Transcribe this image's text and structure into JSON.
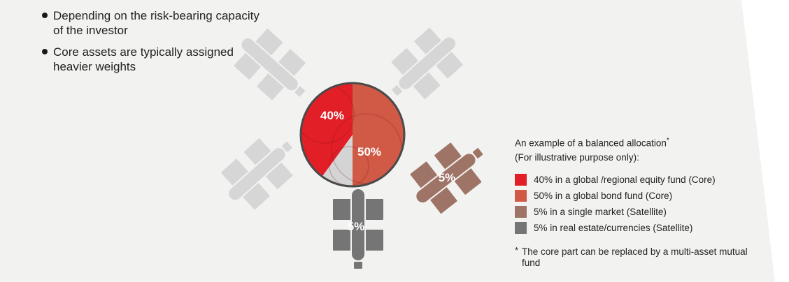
{
  "bullets": [
    {
      "text": "Depending on the risk-bearing capacity of the investor"
    },
    {
      "text": "Core assets are typically assigned heavier weights"
    }
  ],
  "legend": {
    "title_line1": "An example of a balanced allocation",
    "title_mark": "*",
    "title_line2": "(For illustrative purpose only):",
    "items": [
      {
        "label": "40% in a global /regional equity fund (Core)",
        "color": "#e21f26"
      },
      {
        "label": "50% in a global bond fund (Core)",
        "color": "#d05a45"
      },
      {
        "label": "5% in a single market (Satellite)",
        "color": "#9e7466"
      },
      {
        "label": "5% in real estate/currencies (Satellite)",
        "color": "#757575"
      }
    ],
    "footnote_mark": "*",
    "footnote": "The core part can be replaced by a multi-asset mutual fund"
  },
  "chart_data": {
    "type": "pie",
    "categories": [
      "40% in a global /regional equity fund (Core)",
      "50% in a global bond fund (Core)",
      "5% in a single market (Satellite)",
      "5% in real estate/currencies (Satellite)"
    ],
    "values": [
      40,
      50,
      5,
      5
    ],
    "labels": [
      "40%",
      "50%",
      "5%",
      "5%"
    ],
    "colors": [
      "#e21f26",
      "#d05a45",
      "#9e7466",
      "#757575"
    ],
    "remainder_color": "#d4d4d4"
  }
}
